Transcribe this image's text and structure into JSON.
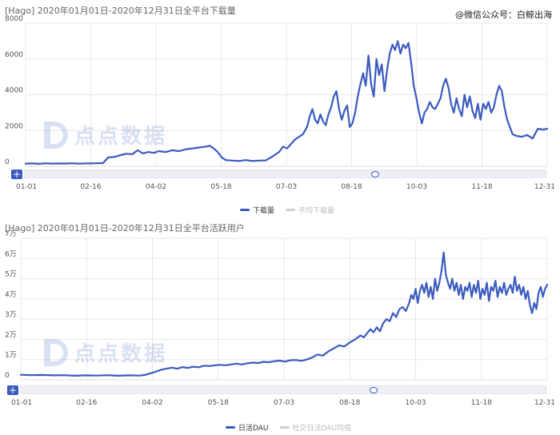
{
  "watermark": "@微信公众号：白鲸出海",
  "logo_text": "点点数据",
  "chart_data": [
    {
      "type": "line",
      "title": "[Hago]  2020年01月01日-2020年12月31日全平台下载量",
      "x_ticks": [
        "01-01",
        "02-16",
        "04-02",
        "05-18",
        "07-03",
        "08-18",
        "10-03",
        "11-18",
        "12-31"
      ],
      "y_ticks": [
        "8000",
        "6000",
        "4000",
        "2000",
        "0"
      ],
      "ylim": [
        0,
        8000
      ],
      "legend": [
        {
          "label": "下载量",
          "active": true,
          "color": "#3a5bbf"
        },
        {
          "label": "平均下载量",
          "active": false,
          "color": "#d0d0d0"
        }
      ],
      "series": [
        {
          "name": "下载量",
          "color": "#3a5bbf",
          "points": [
            [
              0,
              150
            ],
            [
              5,
              160
            ],
            [
              10,
              140
            ],
            [
              15,
              170
            ],
            [
              20,
              150
            ],
            [
              25,
              160
            ],
            [
              30,
              155
            ],
            [
              35,
              170
            ],
            [
              40,
              150
            ],
            [
              46,
              160
            ],
            [
              52,
              170
            ],
            [
              58,
              180
            ],
            [
              62,
              500
            ],
            [
              66,
              520
            ],
            [
              70,
              600
            ],
            [
              75,
              700
            ],
            [
              80,
              680
            ],
            [
              84,
              900
            ],
            [
              88,
              720
            ],
            [
              92,
              800
            ],
            [
              96,
              750
            ],
            [
              100,
              850
            ],
            [
              105,
              800
            ],
            [
              110,
              900
            ],
            [
              115,
              850
            ],
            [
              120,
              950
            ],
            [
              125,
              1000
            ],
            [
              130,
              1050
            ],
            [
              135,
              1100
            ],
            [
              138,
              1150
            ],
            [
              141,
              1000
            ],
            [
              144,
              800
            ],
            [
              147,
              500
            ],
            [
              150,
              350
            ],
            [
              155,
              320
            ],
            [
              160,
              300
            ],
            [
              165,
              350
            ],
            [
              170,
              300
            ],
            [
              175,
              320
            ],
            [
              180,
              330
            ],
            [
              184,
              500
            ],
            [
              187,
              650
            ],
            [
              190,
              800
            ],
            [
              193,
              1100
            ],
            [
              196,
              1000
            ],
            [
              199,
              1250
            ],
            [
              202,
              1500
            ],
            [
              205,
              1650
            ],
            [
              208,
              1800
            ],
            [
              211,
              2200
            ],
            [
              213,
              2800
            ],
            [
              215,
              3200
            ],
            [
              217,
              2600
            ],
            [
              219,
              2400
            ],
            [
              221,
              2900
            ],
            [
              223,
              2500
            ],
            [
              225,
              2300
            ],
            [
              227,
              2900
            ],
            [
              229,
              3300
            ],
            [
              231,
              3900
            ],
            [
              233,
              4200
            ],
            [
              235,
              3200
            ],
            [
              237,
              2600
            ],
            [
              239,
              3100
            ],
            [
              241,
              3400
            ],
            [
              243,
              2200
            ],
            [
              245,
              2400
            ],
            [
              247,
              3000
            ],
            [
              249,
              3900
            ],
            [
              251,
              4600
            ],
            [
              253,
              5200
            ],
            [
              255,
              4500
            ],
            [
              257,
              6200
            ],
            [
              259,
              4600
            ],
            [
              261,
              3900
            ],
            [
              263,
              6000
            ],
            [
              265,
              5100
            ],
            [
              267,
              5700
            ],
            [
              269,
              4200
            ],
            [
              271,
              5400
            ],
            [
              273,
              6300
            ],
            [
              275,
              6800
            ],
            [
              277,
              6500
            ],
            [
              279,
              7000
            ],
            [
              281,
              6300
            ],
            [
              283,
              6800
            ],
            [
              285,
              6600
            ],
            [
              287,
              6900
            ],
            [
              289,
              5800
            ],
            [
              291,
              4500
            ],
            [
              293,
              3800
            ],
            [
              295,
              3000
            ],
            [
              297,
              2400
            ],
            [
              299,
              3000
            ],
            [
              301,
              3200
            ],
            [
              303,
              3600
            ],
            [
              305,
              3300
            ],
            [
              307,
              3200
            ],
            [
              309,
              3500
            ],
            [
              311,
              3800
            ],
            [
              313,
              4500
            ],
            [
              315,
              4900
            ],
            [
              317,
              4400
            ],
            [
              319,
              3500
            ],
            [
              321,
              3000
            ],
            [
              323,
              3800
            ],
            [
              325,
              3200
            ],
            [
              327,
              2800
            ],
            [
              329,
              4000
            ],
            [
              331,
              3300
            ],
            [
              333,
              3900
            ],
            [
              335,
              3100
            ],
            [
              337,
              2700
            ],
            [
              339,
              3500
            ],
            [
              341,
              2600
            ],
            [
              343,
              3500
            ],
            [
              345,
              3200
            ],
            [
              347,
              3600
            ],
            [
              349,
              3000
            ],
            [
              351,
              3300
            ],
            [
              353,
              4000
            ],
            [
              355,
              4500
            ],
            [
              357,
              4200
            ],
            [
              359,
              3300
            ],
            [
              361,
              2600
            ],
            [
              363,
              2200
            ],
            [
              365,
              1800
            ],
            [
              368,
              1700
            ],
            [
              372,
              1650
            ],
            [
              376,
              1750
            ],
            [
              380,
              1550
            ],
            [
              384,
              2100
            ],
            [
              388,
              2050
            ],
            [
              391,
              2100
            ]
          ]
        }
      ]
    },
    {
      "type": "line",
      "title": "[Hago]  2020年01月01日-2020年12月31日全平台活跃用户",
      "x_ticks": [
        "01-01",
        "02-16",
        "04-02",
        "05-18",
        "07-03",
        "08-18",
        "10-03",
        "11-18",
        "12-31"
      ],
      "y_ticks": [
        "7万",
        "6万",
        "5万",
        "4万",
        "3万",
        "2万",
        "1万",
        "0"
      ],
      "ylim": [
        0,
        70000
      ],
      "legend": [
        {
          "label": "日活DAU",
          "active": true,
          "color": "#3a5bbf"
        },
        {
          "label": "社交日活DAU均值",
          "active": false,
          "color": "#d0d0d0"
        }
      ],
      "series": [
        {
          "name": "日活DAU",
          "color": "#3a5bbf",
          "points": [
            [
              0,
              2500
            ],
            [
              10,
              2300
            ],
            [
              20,
              2400
            ],
            [
              30,
              2200
            ],
            [
              40,
              2300
            ],
            [
              50,
              2000
            ],
            [
              60,
              2200
            ],
            [
              70,
              2100
            ],
            [
              80,
              2300
            ],
            [
              90,
              2000
            ],
            [
              100,
              2200
            ],
            [
              110,
              2100
            ],
            [
              115,
              2400
            ],
            [
              120,
              3200
            ],
            [
              125,
              4000
            ],
            [
              130,
              5000
            ],
            [
              135,
              5500
            ],
            [
              140,
              6000
            ],
            [
              145,
              5500
            ],
            [
              150,
              6300
            ],
            [
              155,
              5900
            ],
            [
              160,
              6500
            ],
            [
              165,
              6200
            ],
            [
              170,
              7000
            ],
            [
              175,
              6800
            ],
            [
              180,
              7200
            ],
            [
              185,
              7400
            ],
            [
              190,
              7200
            ],
            [
              195,
              7600
            ],
            [
              200,
              8000
            ],
            [
              205,
              7600
            ],
            [
              210,
              8200
            ],
            [
              215,
              8500
            ],
            [
              220,
              8300
            ],
            [
              225,
              8900
            ],
            [
              230,
              8700
            ],
            [
              235,
              9200
            ],
            [
              240,
              9500
            ],
            [
              245,
              9000
            ],
            [
              250,
              9700
            ],
            [
              255,
              9800
            ],
            [
              260,
              9400
            ],
            [
              265,
              10000
            ],
            [
              270,
              11000
            ],
            [
              275,
              12500
            ],
            [
              280,
              12000
            ],
            [
              285,
              14000
            ],
            [
              290,
              15500
            ],
            [
              295,
              17000
            ],
            [
              300,
              16500
            ],
            [
              305,
              18500
            ],
            [
              310,
              20000
            ],
            [
              315,
              22000
            ],
            [
              318,
              21000
            ],
            [
              321,
              23000
            ],
            [
              324,
              25000
            ],
            [
              327,
              23500
            ],
            [
              330,
              26000
            ],
            [
              333,
              24000
            ],
            [
              336,
              28000
            ],
            [
              339,
              30000
            ],
            [
              342,
              29000
            ],
            [
              345,
              33000
            ],
            [
              348,
              31000
            ],
            [
              351,
              35000
            ],
            [
              354,
              36000
            ],
            [
              357,
              34000
            ],
            [
              360,
              38000
            ],
            [
              362,
              42000
            ],
            [
              364,
              40000
            ],
            [
              366,
              45000
            ],
            [
              368,
              38000
            ],
            [
              370,
              44000
            ],
            [
              372,
              47000
            ],
            [
              374,
              43000
            ],
            [
              376,
              48000
            ],
            [
              378,
              41000
            ],
            [
              380,
              46000
            ],
            [
              382,
              40000
            ],
            [
              384,
              50000
            ],
            [
              386,
              44000
            ],
            [
              388,
              48000
            ],
            [
              390,
              54000
            ],
            [
              392,
              63000
            ],
            [
              394,
              52000
            ],
            [
              396,
              48000
            ],
            [
              398,
              45000
            ],
            [
              400,
              50000
            ],
            [
              402,
              44000
            ],
            [
              404,
              48000
            ],
            [
              406,
              42000
            ],
            [
              408,
              47000
            ],
            [
              410,
              40000
            ],
            [
              412,
              46000
            ],
            [
              414,
              44000
            ],
            [
              416,
              48000
            ],
            [
              418,
              41000
            ],
            [
              420,
              47000
            ],
            [
              422,
              43000
            ],
            [
              424,
              49000
            ],
            [
              426,
              40000
            ],
            [
              428,
              45000
            ],
            [
              430,
              42000
            ],
            [
              432,
              48000
            ],
            [
              434,
              39000
            ],
            [
              436,
              46000
            ],
            [
              438,
              44000
            ],
            [
              440,
              49000
            ],
            [
              442,
              41000
            ],
            [
              444,
              46000
            ],
            [
              446,
              43000
            ],
            [
              448,
              48000
            ],
            [
              450,
              42000
            ],
            [
              452,
              45000
            ],
            [
              454,
              47000
            ],
            [
              456,
              43000
            ],
            [
              458,
              51000
            ],
            [
              460,
              44000
            ],
            [
              462,
              47000
            ],
            [
              464,
              42000
            ],
            [
              466,
              46000
            ],
            [
              468,
              40000
            ],
            [
              470,
              44000
            ],
            [
              472,
              37000
            ],
            [
              474,
              33000
            ],
            [
              476,
              38000
            ],
            [
              478,
              35000
            ],
            [
              480,
              43000
            ],
            [
              482,
              46000
            ],
            [
              484,
              41000
            ],
            [
              486,
              45000
            ],
            [
              488,
              47000
            ]
          ]
        }
      ]
    }
  ]
}
